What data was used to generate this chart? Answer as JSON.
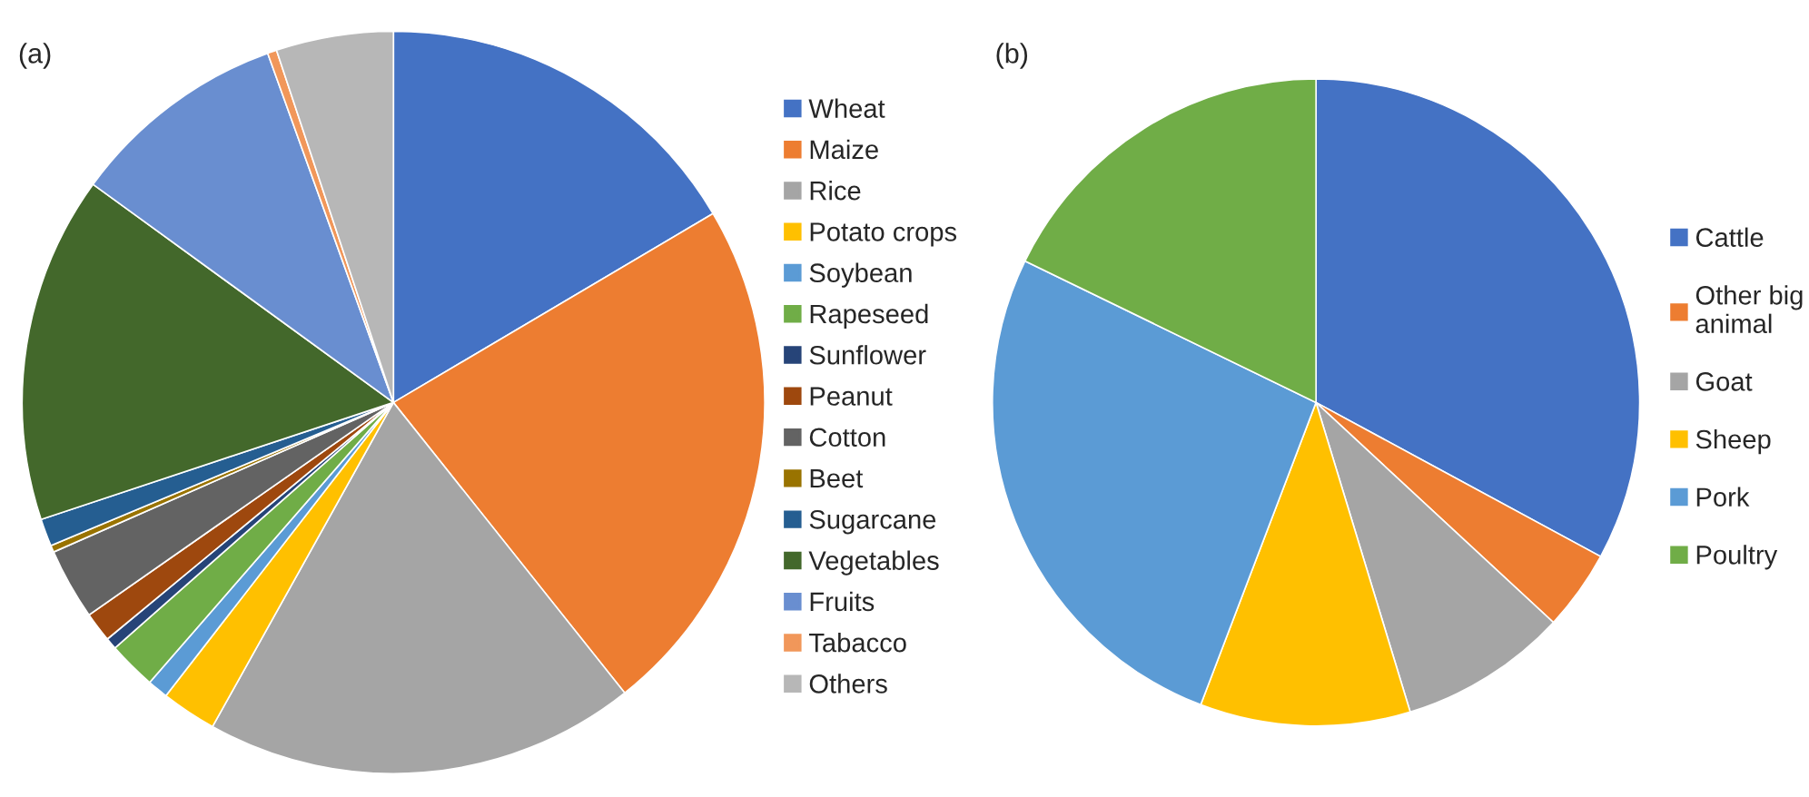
{
  "chart_data": [
    {
      "type": "pie",
      "title": "(a)",
      "legend": "right",
      "categories": [
        "Wheat",
        "Maize",
        "Rice",
        "Potato crops",
        "Soybean",
        "Rapeseed",
        "Sunflower",
        "Peanut",
        "Cotton",
        "Beet",
        "Sugarcane",
        "Vegetables",
        "Fruits",
        "Tabacco",
        "Others"
      ],
      "values": [
        16.5,
        22.8,
        18.8,
        2.4,
        0.9,
        2.1,
        0.5,
        1.3,
        3.1,
        0.3,
        1.2,
        15.1,
        9.5,
        0.4,
        5.1
      ],
      "colors": [
        "#4472c4",
        "#ed7d31",
        "#a5a5a5",
        "#ffc000",
        "#5b9bd5",
        "#70ad47",
        "#264478",
        "#9e480e",
        "#636363",
        "#997300",
        "#255e91",
        "#43682b",
        "#698ed0",
        "#f1975a",
        "#b7b7b7"
      ]
    },
    {
      "type": "pie",
      "title": "(b)",
      "legend": "right",
      "categories": [
        "Cattle",
        "Other big\nanimal",
        "Goat",
        "Sheep",
        "Pork",
        "Poultry"
      ],
      "values": [
        32.9,
        4.0,
        8.4,
        10.5,
        26.4,
        17.8
      ],
      "colors": [
        "#4472c4",
        "#ed7d31",
        "#a5a5a5",
        "#ffc000",
        "#5b9bd5",
        "#70ad47"
      ]
    }
  ]
}
